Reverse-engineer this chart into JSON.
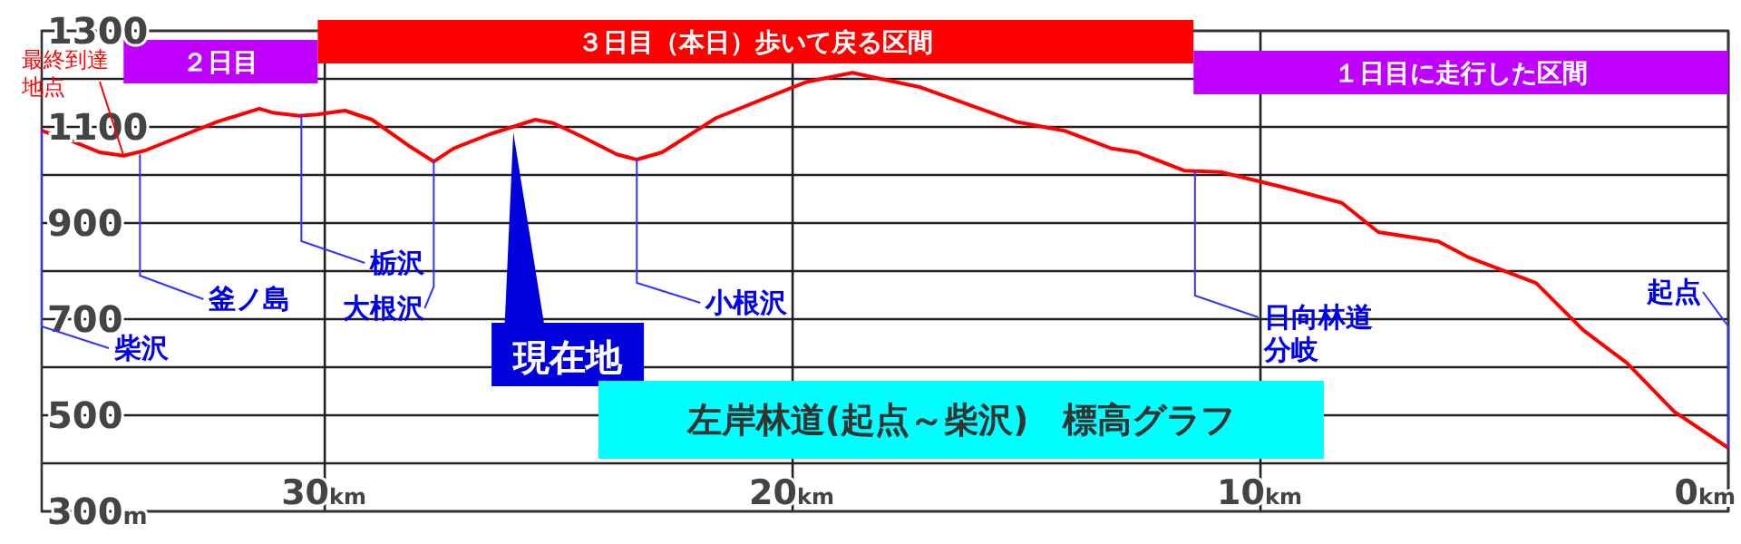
{
  "chart_data": {
    "type": "line",
    "title": "左岸林道(起点～柴沢)　標高グラフ",
    "x": [
      36.05,
      35.39,
      34.81,
      34.3,
      33.84,
      33.06,
      32.29,
      31.4,
      31.12,
      30.54,
      30.16,
      29.57,
      28.99,
      28.22,
      27.67,
      27.25,
      26.47,
      25.5,
      25.12,
      24.53,
      23.76,
      23.33,
      22.79,
      21.63,
      20.66,
      19.69,
      18.72,
      18.41,
      17.29,
      15.23,
      14.19,
      13.18,
      12.64,
      11.63,
      10.85,
      9.53,
      8.26,
      7.48,
      6.2,
      5.54,
      4.11,
      3.1,
      2.17,
      1.16,
      0
    ],
    "series": [
      {
        "color": "#ff0000",
        "values": [
          1092,
          1070,
          1047,
          1040,
          1051,
          1081,
          1111,
          1138,
          1130,
          1123,
          1126,
          1134,
          1115,
          1062,
          1028,
          1055,
          1085,
          1115,
          1108,
          1081,
          1043,
          1032,
          1047,
          1119,
          1157,
          1194,
          1213,
          1206,
          1183,
          1111,
          1092,
          1055,
          1047,
          1009,
          1006,
          975,
          942,
          881,
          862,
          828,
          775,
          677,
          609,
          508,
          432
        ]
      }
    ],
    "xlim": [
      36.05,
      0
    ],
    "xticks": [
      {
        "value": 30,
        "label": "30km"
      },
      {
        "value": 20,
        "label": "20km"
      },
      {
        "value": 10,
        "label": "10km"
      },
      {
        "value": 0,
        "label": "0km"
      }
    ],
    "ylim": [
      300,
      1300
    ],
    "yticks": [
      {
        "value": 300,
        "label": "300m"
      },
      {
        "value": 400,
        "label": null
      },
      500,
      {
        "value": 600,
        "label": null
      },
      700,
      {
        "value": 800,
        "label": null
      },
      900,
      {
        "value": 1000,
        "label": null
      },
      1100,
      {
        "value": 1200,
        "label": null
      },
      1300
    ],
    "grid": true,
    "marker": "none",
    "line_style": "solid",
    "bands": [
      {
        "axis": "x",
        "from": 34.3,
        "to": 30.15,
        "label": "２日目",
        "color": "#bf00ff"
      },
      {
        "axis": "x",
        "from": 30.15,
        "to": 11.43,
        "label": "３日目（本日）歩いて戻る区間",
        "color": "#ff0000"
      },
      {
        "axis": "x",
        "from": 11.43,
        "to": 0,
        "label": "１日目に走行した区間",
        "color": "#bf00ff"
      }
    ],
    "annotations": [
      {
        "text": "柴沢",
        "x": 36.05,
        "y": 1092
      },
      {
        "text": "釜ノ島",
        "x": 33.95,
        "y": 1043
      },
      {
        "text": "栃沢",
        "x": 30.5,
        "y": 1127
      },
      {
        "text": "大根沢",
        "x": 27.67,
        "y": 1030
      },
      {
        "text": "小根沢",
        "x": 23.33,
        "y": 1034
      },
      {
        "text": "日向林道分岐",
        "x": 11.4,
        "y": 1008
      },
      {
        "text": "起点",
        "x": 0,
        "y": 432
      },
      {
        "text": "最終到達地点",
        "x": 34.3,
        "y": 1040
      },
      {
        "text": "現在地",
        "x": 25.97,
        "y": 1100
      }
    ]
  }
}
